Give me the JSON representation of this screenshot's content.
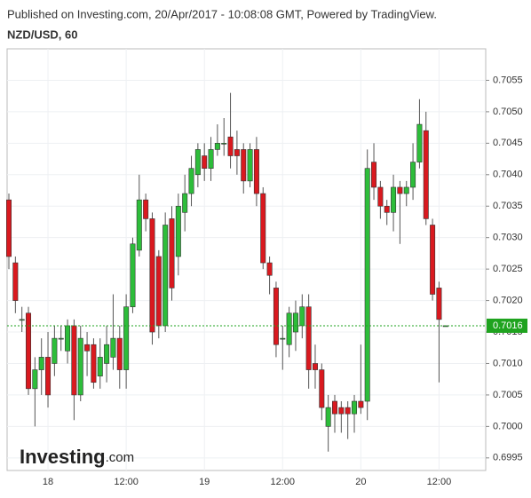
{
  "header": {
    "published": "Published on Investing.com, 20/Apr/2017 - 10:08:08 GMT, Powered by TradingView.",
    "symbol": "NZD/USD, 60"
  },
  "logo": {
    "name": "Investing",
    "suffix": ".com"
  },
  "chart_data": {
    "type": "candlestick",
    "categories": [
      null,
      null,
      null,
      null,
      null,
      null,
      "18",
      null,
      null,
      null,
      null,
      null,
      null,
      null,
      null,
      null,
      null,
      null,
      "12:00",
      null,
      null,
      null,
      null,
      null,
      null,
      null,
      null,
      null,
      null,
      null,
      "19",
      null,
      null,
      null,
      null,
      null,
      null,
      null,
      null,
      null,
      null,
      null,
      "12:00",
      null,
      null,
      null,
      null,
      null,
      null,
      null,
      null,
      null,
      null,
      null,
      "20",
      null,
      null,
      null,
      null,
      null,
      null,
      null,
      null,
      null,
      null,
      null,
      "12:00",
      null
    ],
    "open": [
      0.7036,
      0.7026,
      0.7017,
      0.7018,
      0.7006,
      0.7009,
      0.7011,
      0.701,
      0.7014,
      0.7012,
      0.7016,
      0.7005,
      0.7013,
      0.7013,
      0.7008,
      0.701,
      0.7011,
      0.7014,
      0.7009,
      0.7019,
      0.7028,
      0.7036,
      0.7033,
      0.7027,
      0.7016,
      0.7033,
      0.7027,
      0.7034,
      0.7037,
      0.704,
      0.7043,
      0.7041,
      0.7044,
      0.7045,
      0.7046,
      0.7044,
      0.7044,
      0.7039,
      0.7044,
      0.7037,
      0.7026,
      0.7022,
      0.7014,
      0.7013,
      0.7015,
      0.7016,
      0.7019,
      0.701,
      0.7009,
      0.7,
      0.7004,
      0.7003,
      0.7003,
      0.7002,
      0.7004,
      0.7004,
      0.7042,
      0.7038,
      0.7035,
      0.7034,
      0.7038,
      0.7037,
      0.7038,
      0.7042,
      0.7047,
      0.7032,
      0.7022,
      0.7016
    ],
    "high": [
      0.7037,
      0.7027,
      0.7019,
      0.7019,
      0.7011,
      0.7014,
      0.7015,
      0.7016,
      0.7016,
      0.7017,
      0.7017,
      0.7016,
      0.7015,
      0.7014,
      0.7014,
      0.7016,
      0.7021,
      0.7016,
      0.7021,
      0.703,
      0.704,
      0.7037,
      0.7034,
      0.7028,
      0.7034,
      0.7035,
      0.7037,
      0.704,
      0.7043,
      0.7045,
      0.7045,
      0.7046,
      0.7048,
      0.7049,
      0.7053,
      0.7047,
      0.7045,
      0.7045,
      0.7046,
      0.7038,
      0.7027,
      0.7023,
      0.7016,
      0.7019,
      0.702,
      0.7021,
      0.7021,
      0.7013,
      0.701,
      0.7005,
      0.7005,
      0.7004,
      0.7004,
      0.7005,
      0.7013,
      0.7044,
      0.7045,
      0.7039,
      0.7036,
      0.704,
      0.7039,
      0.7039,
      0.7045,
      0.7052,
      0.705,
      0.7033,
      0.7023,
      0.7016
    ],
    "low": [
      0.7025,
      0.7018,
      0.7015,
      0.7005,
      0.7,
      0.7005,
      0.7003,
      0.7008,
      0.7012,
      0.701,
      0.7001,
      0.7004,
      0.7008,
      0.7006,
      0.7006,
      0.7007,
      0.7009,
      0.7006,
      0.7006,
      0.7018,
      0.7027,
      0.7031,
      0.7013,
      0.7014,
      0.7015,
      0.702,
      0.7024,
      0.7031,
      0.7035,
      0.7038,
      0.7039,
      0.7039,
      0.7043,
      0.7043,
      0.7041,
      0.704,
      0.7037,
      0.7038,
      0.7035,
      0.7025,
      0.7021,
      0.7011,
      0.7009,
      0.7011,
      0.7012,
      0.7014,
      0.7006,
      0.7006,
      0.7001,
      0.6996,
      0.6999,
      0.6999,
      0.6998,
      0.6999,
      0.7002,
      0.7001,
      0.7036,
      0.7033,
      0.7032,
      0.7031,
      0.7029,
      0.7035,
      0.7036,
      0.7041,
      0.7032,
      0.702,
      0.7007,
      0.7016
    ],
    "close": [
      0.7027,
      0.702,
      0.7017,
      0.7006,
      0.7009,
      0.7011,
      0.7005,
      0.7014,
      0.7014,
      0.7016,
      0.7005,
      0.7014,
      0.7012,
      0.7007,
      0.7011,
      0.7013,
      0.7014,
      0.7009,
      0.7019,
      0.7029,
      0.7036,
      0.7033,
      0.7015,
      0.7016,
      0.7032,
      0.7022,
      0.7035,
      0.7037,
      0.7041,
      0.7044,
      0.7041,
      0.7044,
      0.7045,
      0.7045,
      0.7043,
      0.7043,
      0.7039,
      0.7044,
      0.7037,
      0.7026,
      0.7024,
      0.7013,
      0.7014,
      0.7018,
      0.7018,
      0.7019,
      0.7009,
      0.7009,
      0.7003,
      0.7003,
      0.7002,
      0.7002,
      0.7002,
      0.7004,
      0.7003,
      0.7041,
      0.7038,
      0.7035,
      0.7034,
      0.7038,
      0.7037,
      0.7038,
      0.7042,
      0.7048,
      0.7033,
      0.7021,
      0.7017,
      0.7016
    ],
    "up_color": "#2dbd3a",
    "down_color": "#d9191f",
    "ylim": [
      0.6993,
      0.706
    ],
    "yticks": [
      0.6995,
      {
        "value": 0.7,
        "label": "0.7000"
      },
      0.7005,
      {
        "value": 0.701,
        "label": "0.7010"
      },
      0.7015,
      {
        "value": 0.702,
        "label": "0.7020"
      },
      0.7025,
      {
        "value": 0.703,
        "label": "0.7030"
      },
      0.7035,
      {
        "value": 0.704,
        "label": "0.7040"
      },
      0.7045,
      {
        "value": 0.705,
        "label": "0.7050"
      },
      0.7055
    ],
    "last_price": 0.7016,
    "last_price_color": "#1fa31f",
    "grid": true
  }
}
